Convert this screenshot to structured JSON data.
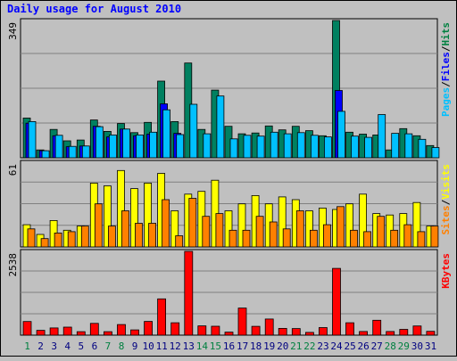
{
  "chart_data": {
    "type": "bar",
    "title": "Daily usage for August 2010",
    "categories": [
      "1",
      "2",
      "3",
      "4",
      "5",
      "6",
      "7",
      "8",
      "9",
      "10",
      "11",
      "12",
      "13",
      "14",
      "15",
      "16",
      "17",
      "18",
      "19",
      "20",
      "21",
      "22",
      "23",
      "24",
      "25",
      "26",
      "27",
      "28",
      "29",
      "30",
      "31"
    ],
    "weekend_days": [
      "1",
      "7",
      "8",
      "14",
      "15",
      "21",
      "22",
      "28",
      "29"
    ],
    "panels": [
      {
        "id": "top",
        "ymax_label": "349",
        "ylim": [
          0,
          349
        ],
        "right_labels": [
          "Pages",
          "/",
          "Files",
          "/",
          "Hits"
        ],
        "right_label_colors": [
          "#00c0ff",
          "#000000",
          "#0000ff",
          "#000000",
          "#008040"
        ],
        "series": [
          {
            "name": "Hits",
            "color": "#008060",
            "values": [
              101,
              20,
              72,
              43,
              45,
              96,
              67,
              87,
              64,
              90,
              195,
              92,
              241,
              72,
              172,
              80,
              61,
              63,
              81,
              71,
              80,
              69,
              56,
              349,
              65,
              60,
              58,
              20,
              74,
              56,
              31
            ]
          },
          {
            "name": "Files",
            "color": "#0000ff",
            "values": [
              88,
              18,
              56,
              28,
              30,
              80,
              53,
              73,
              56,
              60,
              137,
              62,
              0,
              0,
              0,
              0,
              0,
              0,
              0,
              0,
              0,
              0,
              0,
              171,
              0,
              0,
              0,
              0,
              0,
              0,
              0
            ]
          },
          {
            "name": "Pages",
            "color": "#00c0ff",
            "values": [
              92,
              18,
              57,
              29,
              30,
              79,
              58,
              73,
              58,
              65,
              122,
              59,
              136,
              61,
              157,
              48,
              57,
              55,
              65,
              61,
              64,
              57,
              53,
              118,
              55,
              52,
              110,
              62,
              61,
              47,
              26
            ]
          }
        ]
      },
      {
        "id": "middle",
        "ymax_label": "61",
        "ylim": [
          0,
          61
        ],
        "right_labels": [
          "Sites",
          "/",
          "Visits"
        ],
        "right_label_colors": [
          "#ff8000",
          "#000000",
          "#ffff00"
        ],
        "series": [
          {
            "name": "Visits",
            "color": "#ffff00",
            "values": [
              16,
              9,
              19,
              12,
              15,
              46,
              44,
              55,
              42,
              46,
              53,
              26,
              38,
              40,
              48,
              26,
              31,
              37,
              31,
              36,
              34,
              26,
              28,
              27,
              31,
              38,
              24,
              23,
              24,
              32,
              15
            ]
          },
          {
            "name": "Sites",
            "color": "#ff8000",
            "values": [
              13,
              6,
              10,
              11,
              15,
              31,
              15,
              26,
              17,
              17,
              34,
              8,
              35,
              22,
              24,
              12,
              12,
              22,
              18,
              13,
              26,
              12,
              16,
              29,
              12,
              11,
              22,
              12,
              16,
              11,
              15
            ]
          }
        ]
      },
      {
        "id": "bottom",
        "ymax_label": "2538",
        "ylim": [
          0,
          2538
        ],
        "right_labels": [
          "KBytes"
        ],
        "right_label_colors": [
          "#ff0000"
        ],
        "series": [
          {
            "name": "KBytes",
            "color": "#ff0000",
            "values": [
              412,
              145,
              218,
              243,
              104,
              356,
              106,
              322,
              160,
              415,
              1099,
              374,
              2538,
              282,
              270,
              93,
              821,
              267,
              489,
              205,
              200,
              84,
              230,
              2021,
              374,
              110,
              450,
              111,
              176,
              279,
              117
            ]
          }
        ]
      }
    ],
    "colors": {
      "background": "#c0c0c0",
      "plot_background": "#c0c0c0",
      "title": "#0000ff",
      "weekday_label": "#000080",
      "weekend_label": "#008040",
      "grid": "#808080"
    },
    "grid": true
  }
}
